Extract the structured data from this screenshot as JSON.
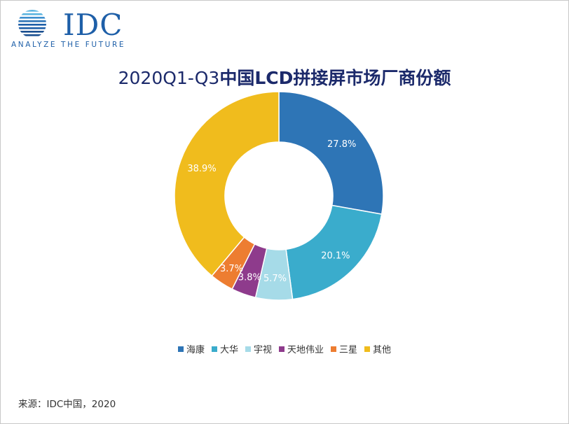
{
  "logo": {
    "wordmark": "IDC",
    "tagline": "ANALYZE THE FUTURE",
    "colors": {
      "primary": "#1e5fa8",
      "light": "#5ab4e0"
    }
  },
  "title": {
    "prefix": "2020Q1-Q3",
    "main": "中国LCD拼接屏市场厂商份额"
  },
  "chart_data": {
    "type": "pie",
    "variant": "donut",
    "title": "2020Q1-Q3中国LCD拼接屏市场厂商份额",
    "categories": [
      "海康",
      "大华",
      "宇视",
      "天地伟业",
      "三星",
      "其他"
    ],
    "values": [
      27.8,
      20.1,
      5.7,
      3.8,
      3.7,
      38.9
    ],
    "labels": [
      "27.8%",
      "20.1%",
      "5.7%",
      "3.8%",
      "3.7%",
      "38.9%"
    ],
    "colors": [
      "#2e75b6",
      "#3aaccc",
      "#a6dbe8",
      "#8e3b8c",
      "#ed7d31",
      "#f0bc1d"
    ],
    "start_angle_deg": 0,
    "direction": "clockwise",
    "legend_position": "bottom"
  },
  "source": "来源：IDC中国，2020"
}
